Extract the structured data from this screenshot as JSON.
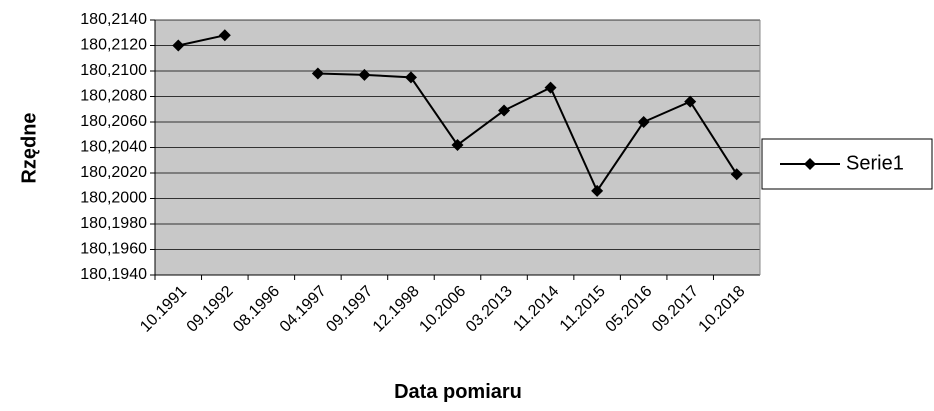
{
  "chart_data": {
    "type": "line",
    "x_label": "Data pomiaru",
    "y_label": "Rzędne",
    "categories": [
      "10.1991",
      "09.1992",
      "08.1996",
      "04.1997",
      "09.1997",
      "12.1998",
      "10.2006",
      "03.2013",
      "11.2014",
      "11.2015",
      "05.2016",
      "09.2017",
      "10.2018"
    ],
    "series": [
      {
        "name": "Serie1",
        "color": "#000000",
        "values": [
          180.212,
          180.2128,
          null,
          180.2098,
          180.2097,
          180.2095,
          180.2042,
          180.2069,
          180.2087,
          180.2006,
          180.206,
          180.2076,
          180.2019
        ]
      }
    ],
    "ylim": [
      180.194,
      180.214
    ],
    "yticks": [
      {
        "value": 180.194,
        "label": "180,1940"
      },
      {
        "value": 180.196,
        "label": "180,1960"
      },
      {
        "value": 180.198,
        "label": "180,1980"
      },
      {
        "value": 180.2,
        "label": "180,2000"
      },
      {
        "value": 180.202,
        "label": "180,2020"
      },
      {
        "value": 180.204,
        "label": "180,2040"
      },
      {
        "value": 180.206,
        "label": "180,2060"
      },
      {
        "value": 180.208,
        "label": "180,2080"
      },
      {
        "value": 180.21,
        "label": "180,2100"
      },
      {
        "value": 180.212,
        "label": "180,2120"
      },
      {
        "value": 180.214,
        "label": "180,2140"
      }
    ],
    "grid": true,
    "legend": "right",
    "plot_background": "#c8c8c8"
  }
}
